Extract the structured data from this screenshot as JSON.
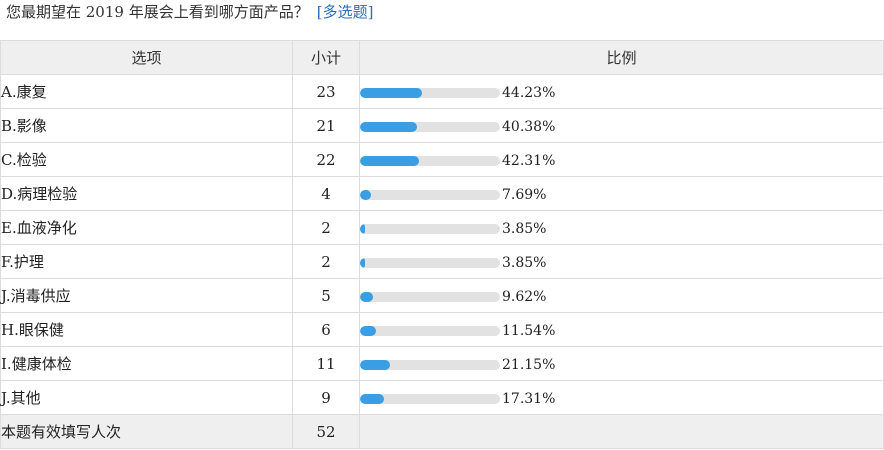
{
  "question": {
    "text": "您最期望在 2019 年展会上看到哪方面产品？",
    "type_label": "[多选题]"
  },
  "table": {
    "headers": {
      "option": "选项",
      "count": "小计",
      "ratio": "比例"
    },
    "total_label": "本题有效填写人次",
    "total_value": "52"
  },
  "colors": {
    "bar_fill": "#3a9ee4",
    "bar_track": "#e2e2e2",
    "header_bg": "#efefef"
  },
  "chart_data": {
    "type": "table",
    "rows": [
      {
        "option": "A.康复",
        "count": 23,
        "percent": 44.23,
        "percent_label": "44.23%"
      },
      {
        "option": "B.影像",
        "count": 21,
        "percent": 40.38,
        "percent_label": "40.38%"
      },
      {
        "option": "C.检验",
        "count": 22,
        "percent": 42.31,
        "percent_label": "42.31%"
      },
      {
        "option": "D.病理检验",
        "count": 4,
        "percent": 7.69,
        "percent_label": "7.69%"
      },
      {
        "option": "E.血液净化",
        "count": 2,
        "percent": 3.85,
        "percent_label": "3.85%"
      },
      {
        "option": "F.护理",
        "count": 2,
        "percent": 3.85,
        "percent_label": "3.85%"
      },
      {
        "option": "J.消毒供应",
        "count": 5,
        "percent": 9.62,
        "percent_label": "9.62%"
      },
      {
        "option": "H.眼保健",
        "count": 6,
        "percent": 11.54,
        "percent_label": "11.54%"
      },
      {
        "option": "I.健康体检",
        "count": 11,
        "percent": 21.15,
        "percent_label": "21.15%"
      },
      {
        "option": "J.其他",
        "count": 9,
        "percent": 17.31,
        "percent_label": "17.31%"
      }
    ]
  }
}
